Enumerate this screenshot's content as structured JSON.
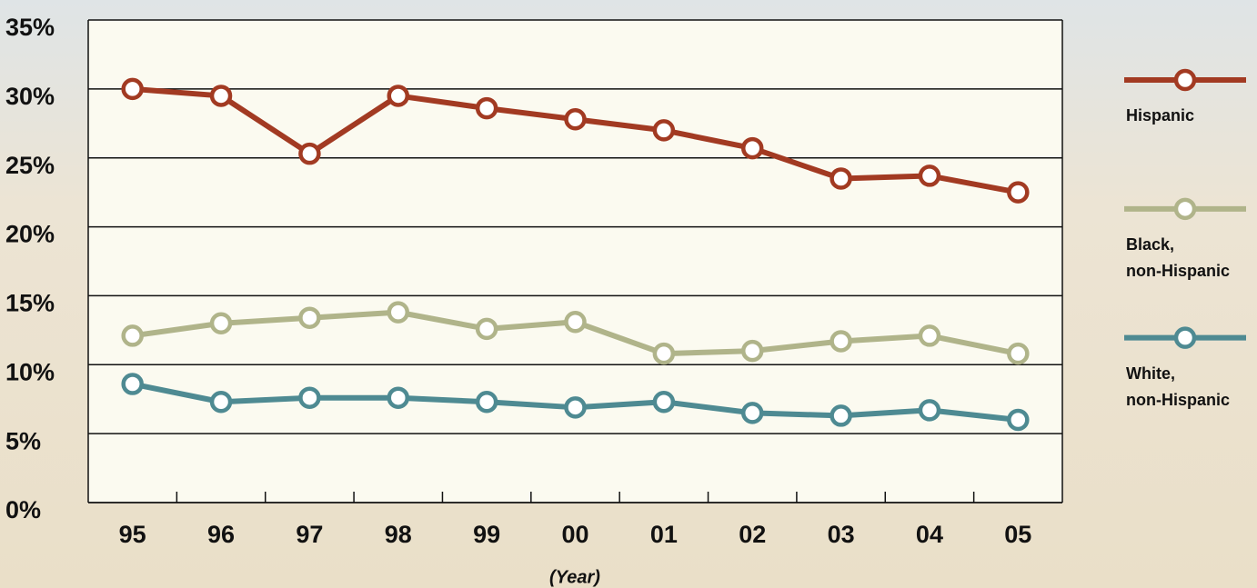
{
  "chart_data": {
    "type": "line",
    "x_label": "(Year)",
    "categories": [
      "95",
      "96",
      "97",
      "98",
      "99",
      "00",
      "01",
      "02",
      "03",
      "04",
      "05"
    ],
    "series": [
      {
        "name": "Hispanic",
        "color": "#a23a22",
        "values": [
          30.0,
          29.5,
          25.3,
          29.5,
          28.6,
          27.8,
          27.0,
          25.7,
          23.5,
          23.7,
          22.5
        ]
      },
      {
        "name": "Black,\nnon-Hispanic",
        "color": "#b0b48a",
        "values": [
          12.1,
          13.0,
          13.4,
          13.8,
          12.6,
          13.1,
          10.8,
          11.0,
          11.7,
          12.1,
          10.8
        ]
      },
      {
        "name": "White,\nnon-Hispanic",
        "color": "#4e8a92",
        "values": [
          8.6,
          7.3,
          7.6,
          7.6,
          7.3,
          6.9,
          7.3,
          6.5,
          6.3,
          6.7,
          6.0
        ]
      }
    ],
    "ylim": [
      0,
      35
    ],
    "yticks": [
      {
        "value": 0,
        "label": "0%"
      },
      {
        "value": 5,
        "label": "5%"
      },
      {
        "value": 10,
        "label": "10%"
      },
      {
        "value": 15,
        "label": "15%"
      },
      {
        "value": 20,
        "label": "20%"
      },
      {
        "value": 25,
        "label": "25%"
      },
      {
        "value": 30,
        "label": "30%"
      },
      {
        "value": 35,
        "label": "35%"
      }
    ],
    "grid": true,
    "legend": "right"
  }
}
